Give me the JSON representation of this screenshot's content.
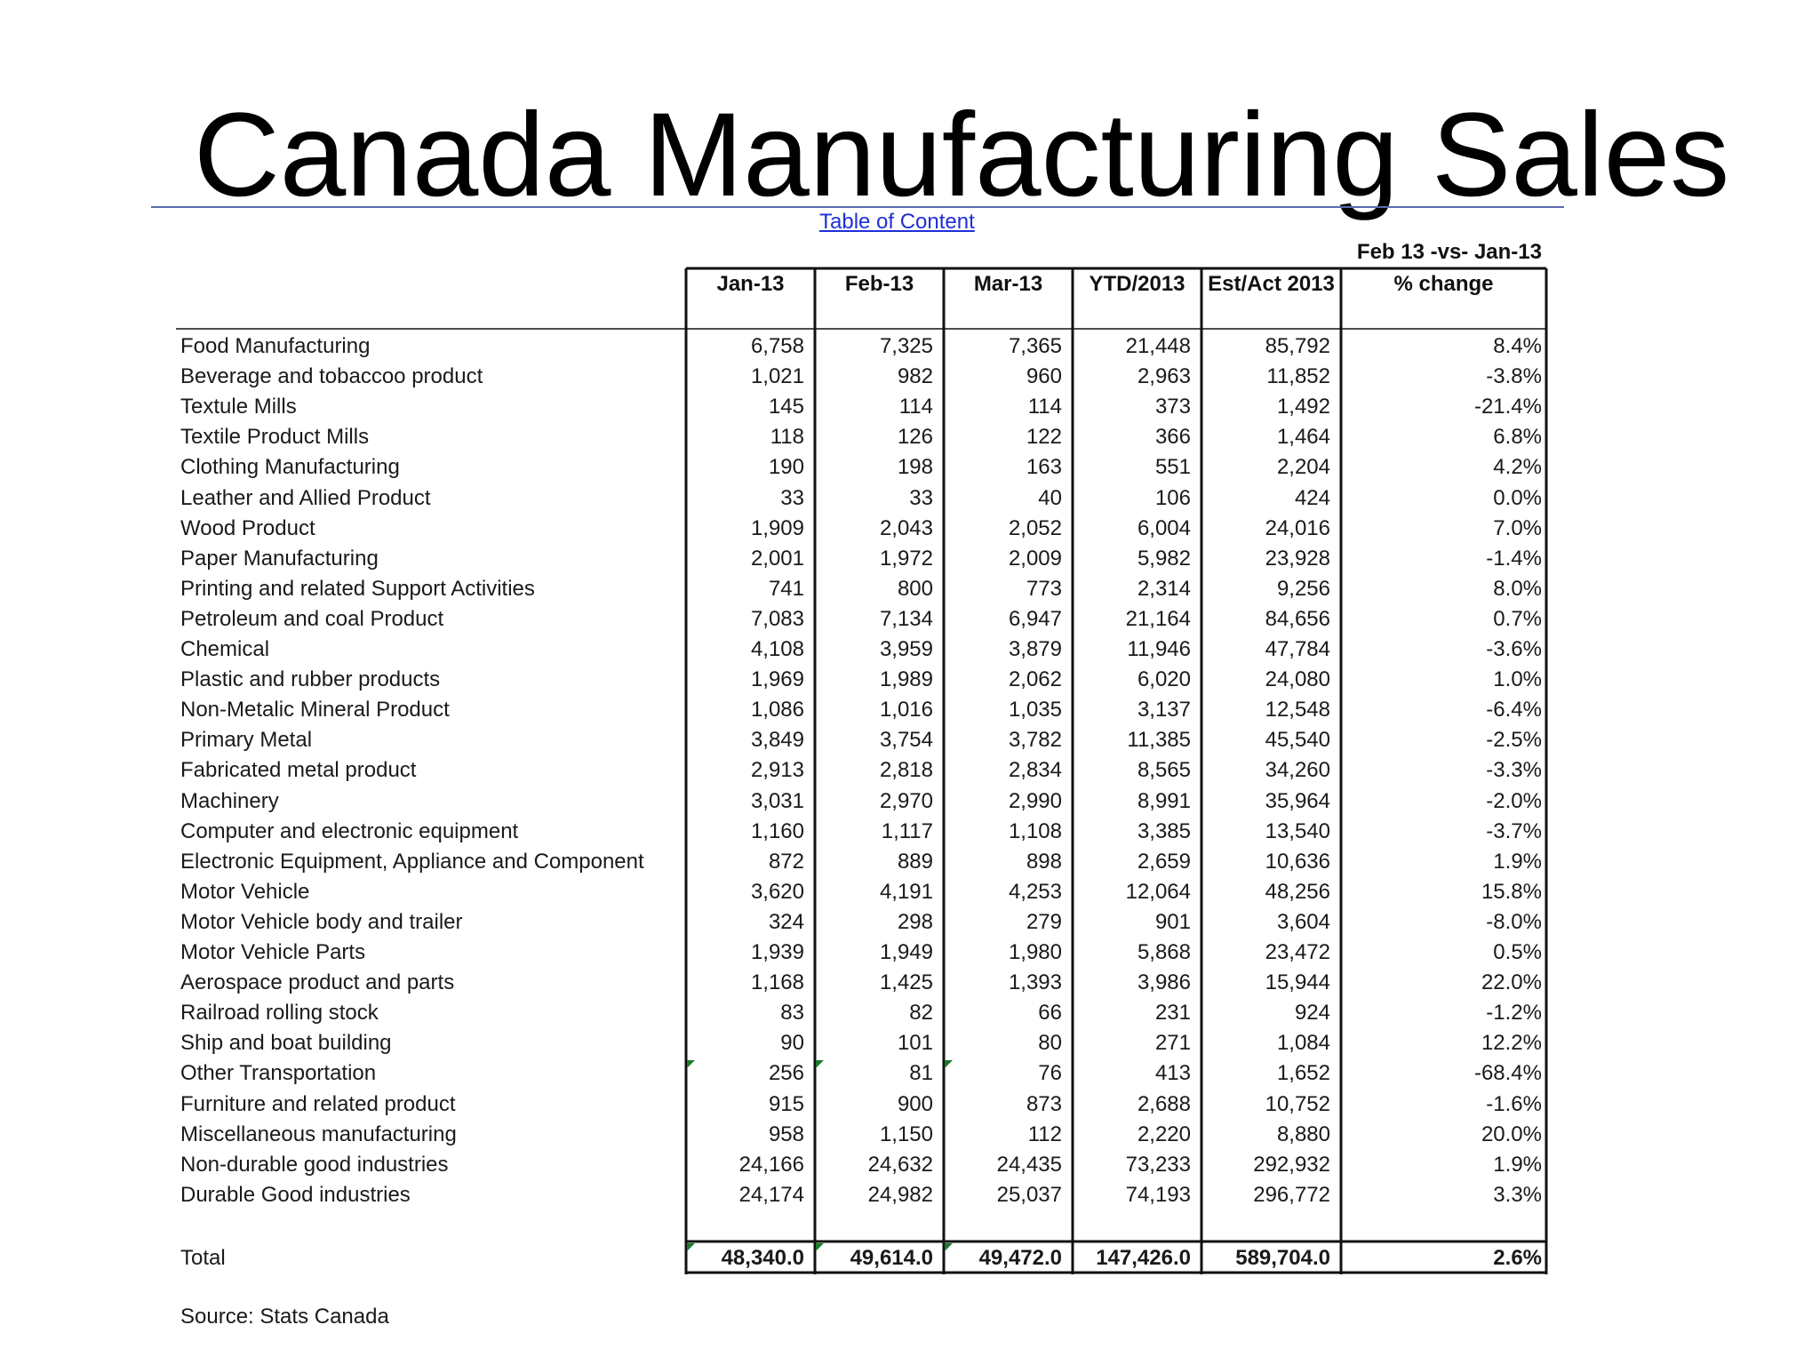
{
  "title": "Canada Manufacturing Sales",
  "toc_link": "Table of Content",
  "compare_header": "Feb 13 -vs- Jan-13",
  "columns": [
    "Jan-13",
    "Feb-13",
    "Mar-13",
    "YTD/2013",
    "Est/Act 2013",
    "% change"
  ],
  "rows": [
    {
      "label": "Food Manufacturing",
      "values": [
        "6,758",
        "7,325",
        "7,365",
        "21,448",
        "85,792",
        "8.4%"
      ]
    },
    {
      "label": "Beverage and tobaccoo product",
      "values": [
        "1,021",
        "982",
        "960",
        "2,963",
        "11,852",
        "-3.8%"
      ]
    },
    {
      "label": "Textule Mills",
      "values": [
        "145",
        "114",
        "114",
        "373",
        "1,492",
        "-21.4%"
      ]
    },
    {
      "label": "Textile Product Mills",
      "values": [
        "118",
        "126",
        "122",
        "366",
        "1,464",
        "6.8%"
      ]
    },
    {
      "label": "Clothing Manufacturing",
      "values": [
        "190",
        "198",
        "163",
        "551",
        "2,204",
        "4.2%"
      ]
    },
    {
      "label": "Leather and Allied Product",
      "values": [
        "33",
        "33",
        "40",
        "106",
        "424",
        "0.0%"
      ]
    },
    {
      "label": "Wood Product",
      "values": [
        "1,909",
        "2,043",
        "2,052",
        "6,004",
        "24,016",
        "7.0%"
      ]
    },
    {
      "label": "Paper Manufacturing",
      "values": [
        "2,001",
        "1,972",
        "2,009",
        "5,982",
        "23,928",
        "-1.4%"
      ]
    },
    {
      "label": "Printing and related Support Activities",
      "values": [
        "741",
        "800",
        "773",
        "2,314",
        "9,256",
        "8.0%"
      ]
    },
    {
      "label": "Petroleum and coal Product",
      "values": [
        "7,083",
        "7,134",
        "6,947",
        "21,164",
        "84,656",
        "0.7%"
      ]
    },
    {
      "label": "Chemical",
      "values": [
        "4,108",
        "3,959",
        "3,879",
        "11,946",
        "47,784",
        "-3.6%"
      ]
    },
    {
      "label": "Plastic and rubber products",
      "values": [
        "1,969",
        "1,989",
        "2,062",
        "6,020",
        "24,080",
        "1.0%"
      ]
    },
    {
      "label": "Non-Metalic Mineral Product",
      "values": [
        "1,086",
        "1,016",
        "1,035",
        "3,137",
        "12,548",
        "-6.4%"
      ]
    },
    {
      "label": "Primary Metal",
      "values": [
        "3,849",
        "3,754",
        "3,782",
        "11,385",
        "45,540",
        "-2.5%"
      ]
    },
    {
      "label": "Fabricated metal product",
      "values": [
        "2,913",
        "2,818",
        "2,834",
        "8,565",
        "34,260",
        "-3.3%"
      ]
    },
    {
      "label": "Machinery",
      "values": [
        "3,031",
        "2,970",
        "2,990",
        "8,991",
        "35,964",
        "-2.0%"
      ]
    },
    {
      "label": "Computer and electronic equipment",
      "values": [
        "1,160",
        "1,117",
        "1,108",
        "3,385",
        "13,540",
        "-3.7%"
      ]
    },
    {
      "label": "Electronic Equipment, Appliance and Component",
      "values": [
        "872",
        "889",
        "898",
        "2,659",
        "10,636",
        "1.9%"
      ]
    },
    {
      "label": "Motor Vehicle",
      "values": [
        "3,620",
        "4,191",
        "4,253",
        "12,064",
        "48,256",
        "15.8%"
      ]
    },
    {
      "label": "Motor Vehicle body and trailer",
      "values": [
        "324",
        "298",
        "279",
        "901",
        "3,604",
        "-8.0%"
      ]
    },
    {
      "label": "Motor Vehicle Parts",
      "values": [
        "1,939",
        "1,949",
        "1,980",
        "5,868",
        "23,472",
        "0.5%"
      ]
    },
    {
      "label": "Aerospace product and parts",
      "values": [
        "1,168",
        "1,425",
        "1,393",
        "3,986",
        "15,944",
        "22.0%"
      ]
    },
    {
      "label": "Railroad rolling stock",
      "values": [
        "83",
        "82",
        "66",
        "231",
        "924",
        "-1.2%"
      ]
    },
    {
      "label": "Ship and boat building",
      "values": [
        "90",
        "101",
        "80",
        "271",
        "1,084",
        "12.2%"
      ]
    },
    {
      "label": "Other Transportation",
      "values": [
        "256",
        "81",
        "76",
        "413",
        "1,652",
        "-68.4%"
      ]
    },
    {
      "label": "Furniture and related product",
      "values": [
        "915",
        "900",
        "873",
        "2,688",
        "10,752",
        "-1.6%"
      ]
    },
    {
      "label": "Miscellaneous manufacturing",
      "values": [
        "958",
        "1,150",
        "112",
        "2,220",
        "8,880",
        "20.0%"
      ]
    },
    {
      "label": "Non-durable good industries",
      "values": [
        "24,166",
        "24,632",
        "24,435",
        "73,233",
        "292,932",
        "1.9%"
      ]
    },
    {
      "label": "Durable Good industries",
      "values": [
        "24,174",
        "24,982",
        "25,037",
        "74,193",
        "296,772",
        "3.3%"
      ]
    }
  ],
  "total": {
    "label": "Total",
    "values": [
      "48,340.0",
      "49,614.0",
      "49,472.0",
      "147,426.0",
      "589,704.0",
      "2.6%"
    ]
  },
  "source": "Source: Stats Canada",
  "colors": {
    "link": "#1f2fd6",
    "rule": "#5a6ba8",
    "marker": "#1b7a2c"
  }
}
